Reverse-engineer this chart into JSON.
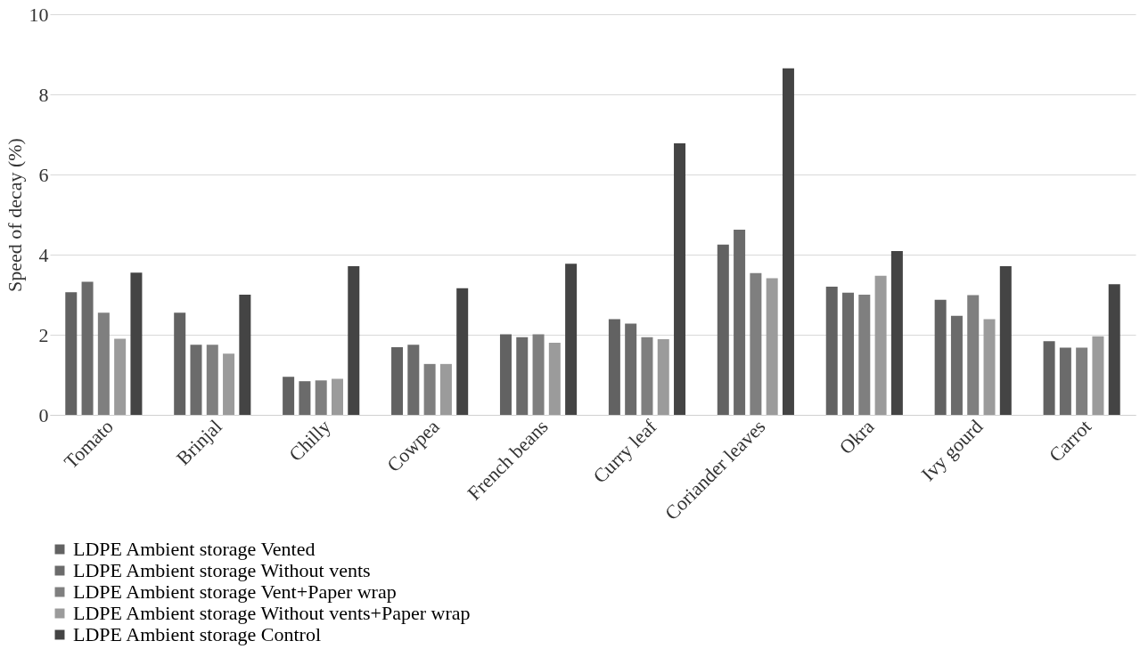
{
  "chart_data": {
    "type": "bar",
    "ylabel": "Speed of decay (%)",
    "categories": [
      "Tomato",
      "Brinjal",
      "Chilly",
      "Cowpea",
      "French beans",
      "Curry leaf",
      "Coriander leaves",
      "Okra",
      "Ivy gourd",
      "Carrot"
    ],
    "series": [
      {
        "name": "LDPE Ambient storage Vented",
        "color": "#626262",
        "values": [
          3.06,
          2.55,
          0.95,
          1.69,
          2.01,
          2.39,
          4.25,
          3.2,
          2.87,
          1.84
        ]
      },
      {
        "name": "LDPE Ambient storage Without vents",
        "color": "#6b6b6b",
        "values": [
          3.32,
          1.75,
          0.84,
          1.75,
          1.94,
          2.28,
          4.62,
          3.05,
          2.47,
          1.68
        ]
      },
      {
        "name": "LDPE Ambient storage Vent+Paper wrap",
        "color": "#7f7f7f",
        "values": [
          2.55,
          1.75,
          0.86,
          1.27,
          2.01,
          1.94,
          3.54,
          3.0,
          2.99,
          1.68
        ]
      },
      {
        "name": "LDPE Ambient storage Without vents+Paper wrap",
        "color": "#9b9b9b",
        "values": [
          1.9,
          1.53,
          0.9,
          1.27,
          1.8,
          1.89,
          3.41,
          3.47,
          2.39,
          1.96
        ]
      },
      {
        "name": "LDPE Ambient storage Control",
        "color": "#444444",
        "values": [
          3.55,
          3.0,
          3.71,
          3.16,
          3.77,
          6.78,
          8.65,
          4.09,
          3.71,
          3.26
        ]
      }
    ],
    "ylim": [
      0,
      10
    ],
    "yticks": [
      0,
      2,
      4,
      6,
      8,
      10
    ],
    "grid": "y",
    "legend": "bottom"
  }
}
